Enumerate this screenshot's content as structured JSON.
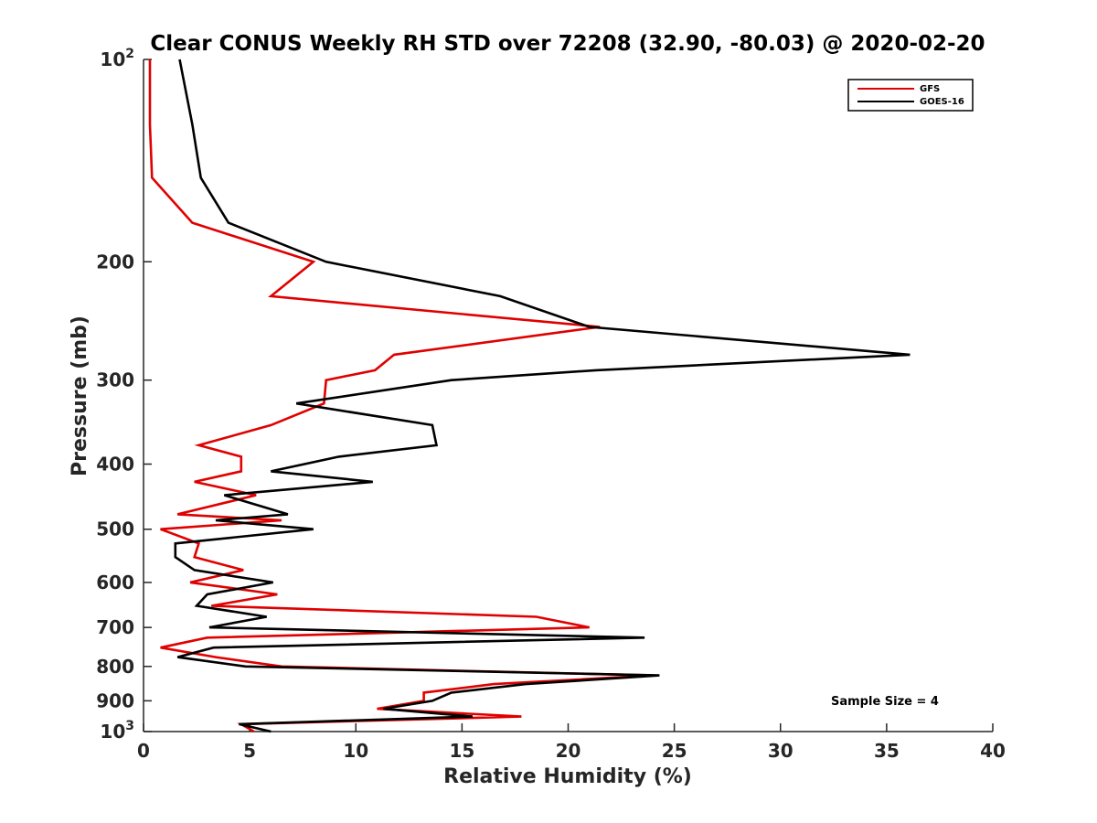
{
  "chart_data": {
    "type": "line",
    "title": "Clear CONUS Weekly RH STD over 72208 (32.90, -80.03) @ 2020-02-20",
    "xlabel": "Relative Humidity (%)",
    "ylabel": "Pressure (mb)",
    "xlim": [
      0,
      40
    ],
    "ylim": [
      100,
      1000
    ],
    "y_scale": "log",
    "y_reversed": true,
    "grid": false,
    "legend_position": "top-right",
    "x_ticks": [
      0,
      5,
      10,
      15,
      20,
      25,
      30,
      35,
      40
    ],
    "y_ticks": [
      {
        "value": 100,
        "base": "10",
        "exp": "2"
      },
      {
        "value": 200,
        "label": "200"
      },
      {
        "value": 300,
        "label": "300"
      },
      {
        "value": 400,
        "label": "400"
      },
      {
        "value": 500,
        "label": "500"
      },
      {
        "value": 600,
        "label": "600"
      },
      {
        "value": 700,
        "label": "700"
      },
      {
        "value": 800,
        "label": "800"
      },
      {
        "value": 900,
        "label": "900"
      },
      {
        "value": 1000,
        "base": "10",
        "exp": "3"
      }
    ],
    "annotation": "Sample Size = 4",
    "series": [
      {
        "name": "GFS",
        "color": "#e00000",
        "points": [
          [
            0.3,
            100
          ],
          [
            0.3,
            125
          ],
          [
            0.4,
            150
          ],
          [
            2.3,
            175
          ],
          [
            8.0,
            200
          ],
          [
            6.0,
            225
          ],
          [
            21.5,
            250
          ],
          [
            11.8,
            275
          ],
          [
            10.9,
            290
          ],
          [
            8.6,
            300
          ],
          [
            8.5,
            325
          ],
          [
            6.0,
            350
          ],
          [
            2.6,
            375
          ],
          [
            4.6,
            390
          ],
          [
            4.6,
            410
          ],
          [
            2.4,
            425
          ],
          [
            5.3,
            445
          ],
          [
            1.6,
            475
          ],
          [
            6.5,
            485
          ],
          [
            0.8,
            500
          ],
          [
            2.6,
            525
          ],
          [
            2.4,
            550
          ],
          [
            4.7,
            575
          ],
          [
            2.2,
            600
          ],
          [
            6.3,
            625
          ],
          [
            3.2,
            650
          ],
          [
            18.5,
            675
          ],
          [
            21.0,
            700
          ],
          [
            3.0,
            725
          ],
          [
            0.8,
            750
          ],
          [
            3.4,
            775
          ],
          [
            6.5,
            800
          ],
          [
            24.0,
            825
          ],
          [
            16.5,
            850
          ],
          [
            13.2,
            875
          ],
          [
            13.2,
            900
          ],
          [
            11.0,
            925
          ],
          [
            17.8,
            950
          ],
          [
            4.6,
            975
          ],
          [
            5.2,
            1000
          ]
        ]
      },
      {
        "name": "GOES-16",
        "color": "#000000",
        "points": [
          [
            1.7,
            100
          ],
          [
            2.3,
            125
          ],
          [
            2.7,
            150
          ],
          [
            4.0,
            175
          ],
          [
            8.6,
            200
          ],
          [
            16.8,
            225
          ],
          [
            21.0,
            250
          ],
          [
            36.1,
            275
          ],
          [
            21.3,
            290
          ],
          [
            14.5,
            300
          ],
          [
            7.2,
            325
          ],
          [
            13.6,
            350
          ],
          [
            13.8,
            375
          ],
          [
            9.2,
            390
          ],
          [
            6.0,
            410
          ],
          [
            10.8,
            425
          ],
          [
            3.8,
            445
          ],
          [
            6.8,
            475
          ],
          [
            3.4,
            485
          ],
          [
            8.0,
            500
          ],
          [
            1.5,
            525
          ],
          [
            1.5,
            550
          ],
          [
            2.4,
            575
          ],
          [
            6.1,
            600
          ],
          [
            3.0,
            625
          ],
          [
            2.5,
            650
          ],
          [
            5.8,
            675
          ],
          [
            3.1,
            700
          ],
          [
            23.6,
            725
          ],
          [
            3.3,
            750
          ],
          [
            1.6,
            775
          ],
          [
            4.8,
            800
          ],
          [
            24.3,
            825
          ],
          [
            18.0,
            850
          ],
          [
            14.5,
            875
          ],
          [
            13.6,
            900
          ],
          [
            11.3,
            925
          ],
          [
            15.5,
            950
          ],
          [
            4.5,
            975
          ],
          [
            6.0,
            1000
          ]
        ]
      }
    ]
  }
}
